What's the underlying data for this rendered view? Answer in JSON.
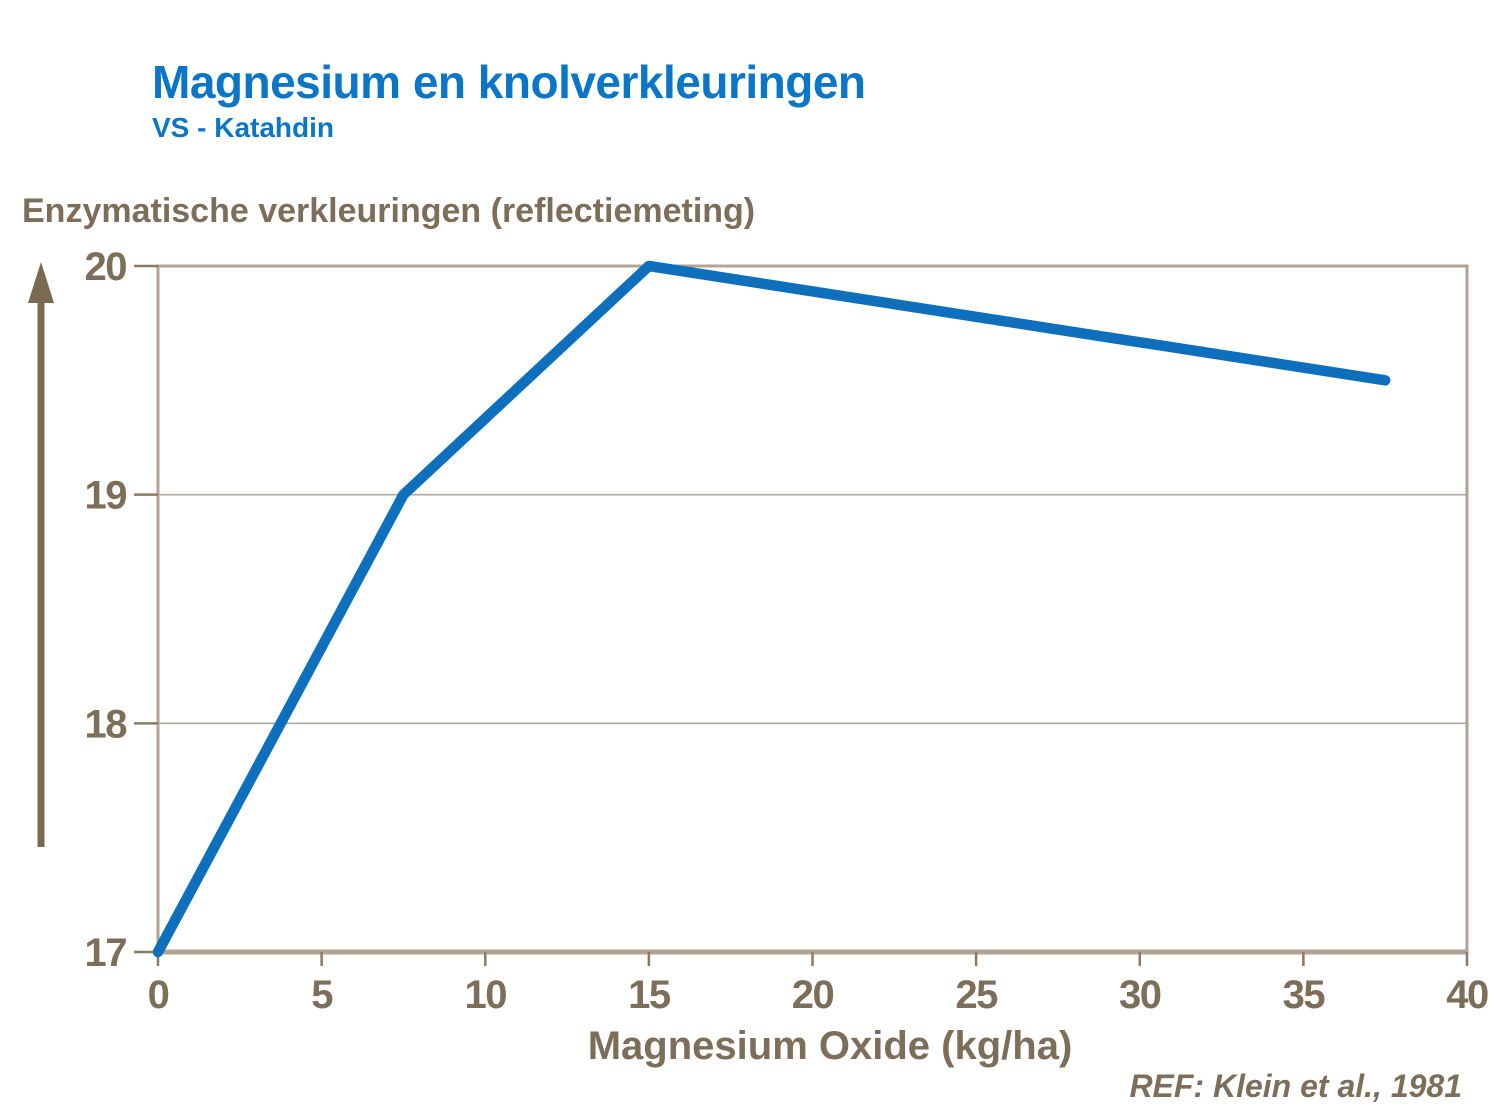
{
  "slide": {
    "title": "Magnesium en knolverkleuringen",
    "subtitle": "VS - Katahdin",
    "reference": "REF: Klein et al., 1981"
  },
  "colors": {
    "background": "#ffffff",
    "title_blue": "#0b76c8",
    "line_blue": "#0e70bd",
    "text_brown": "#7d6e5a",
    "grid_tan": "#b5a797",
    "border_tan": "#b2a394",
    "tick_brown": "#8a7a66",
    "arrow_brown": "#7a6a52"
  },
  "chart_data": {
    "type": "line",
    "title": "",
    "xlabel": "Magnesium Oxide (kg/ha)",
    "ylabel": "Enzymatische verkleuringen (reflectiemeting)",
    "x": [
      0,
      7.5,
      15,
      37.5
    ],
    "series": [
      {
        "name": "Enzymatische verkleuringen (VS - Katahdin)",
        "values": [
          17,
          19,
          20,
          19.5
        ]
      }
    ],
    "xlim": [
      0,
      40
    ],
    "ylim": [
      17,
      20
    ],
    "x_ticks": [
      0,
      5,
      10,
      15,
      20,
      25,
      30,
      35,
      40
    ],
    "y_ticks": [
      17,
      18,
      19,
      20
    ],
    "grid": "horizontal",
    "legend": "none",
    "y_axis_arrow_up": true
  }
}
